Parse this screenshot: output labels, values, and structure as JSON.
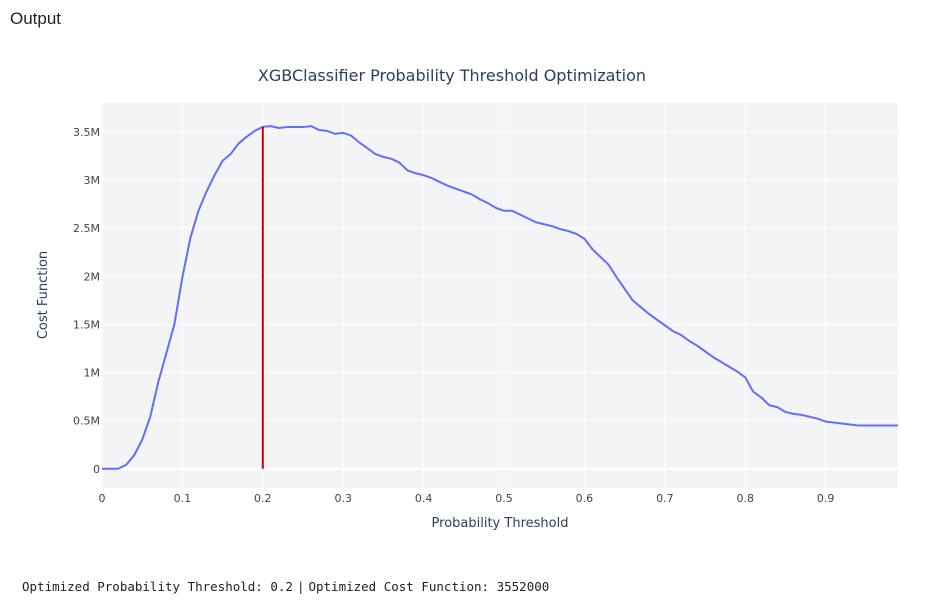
{
  "output_label": "Output",
  "result": {
    "threshold_text": "Optimized Probability Threshold: 0.2",
    "separator": "|",
    "cost_text": "Optimized Cost Function: 3552000"
  },
  "colors": {
    "plot_bg": "#f4f4f7",
    "grid": "#ffffff",
    "line": "#636efa",
    "marker_line": "#cc0000",
    "text": "#2a3f5f"
  },
  "chart_data": {
    "type": "line",
    "title": "XGBClassifier Probability Threshold Optimization",
    "xlabel": "Probability Threshold",
    "ylabel": "Cost Function",
    "xlim": [
      0,
      0.99
    ],
    "ylim": [
      -200000,
      3800000
    ],
    "grid": true,
    "x_ticks": [
      {
        "value": 0,
        "label": "0"
      },
      {
        "value": 0.1,
        "label": "0.1"
      },
      {
        "value": 0.2,
        "label": "0.2"
      },
      {
        "value": 0.3,
        "label": "0.3"
      },
      {
        "value": 0.4,
        "label": "0.4"
      },
      {
        "value": 0.5,
        "label": "0.5"
      },
      {
        "value": 0.6,
        "label": "0.6"
      },
      {
        "value": 0.7,
        "label": "0.7"
      },
      {
        "value": 0.8,
        "label": "0.8"
      },
      {
        "value": 0.9,
        "label": "0.9"
      }
    ],
    "y_ticks": [
      {
        "value": 0,
        "label": "0"
      },
      {
        "value": 500000,
        "label": "0.5M"
      },
      {
        "value": 1000000,
        "label": "1M"
      },
      {
        "value": 1500000,
        "label": "1.5M"
      },
      {
        "value": 2000000,
        "label": "2M"
      },
      {
        "value": 2500000,
        "label": "2.5M"
      },
      {
        "value": 3000000,
        "label": "3M"
      },
      {
        "value": 3500000,
        "label": "3.5M"
      }
    ],
    "series": [
      {
        "x": [
          0,
          0.01,
          0.02,
          0.03,
          0.04,
          0.05,
          0.06,
          0.07,
          0.08,
          0.09,
          0.1,
          0.11,
          0.12,
          0.13,
          0.14,
          0.15,
          0.16,
          0.17,
          0.18,
          0.19,
          0.2,
          0.21,
          0.22,
          0.23,
          0.24,
          0.25,
          0.26,
          0.27,
          0.28,
          0.29,
          0.3,
          0.31,
          0.32,
          0.33,
          0.34,
          0.35,
          0.36,
          0.37,
          0.38,
          0.39,
          0.4,
          0.41,
          0.42,
          0.43,
          0.44,
          0.45,
          0.46,
          0.47,
          0.48,
          0.49,
          0.5,
          0.51,
          0.52,
          0.53,
          0.54,
          0.55,
          0.56,
          0.57,
          0.58,
          0.59,
          0.6,
          0.61,
          0.62,
          0.63,
          0.64,
          0.65,
          0.66,
          0.67,
          0.68,
          0.69,
          0.7,
          0.71,
          0.72,
          0.73,
          0.74,
          0.75,
          0.76,
          0.77,
          0.78,
          0.79,
          0.8,
          0.81,
          0.82,
          0.83,
          0.84,
          0.85,
          0.86,
          0.87,
          0.88,
          0.89,
          0.9,
          0.91,
          0.92,
          0.93,
          0.94,
          0.95,
          0.96,
          0.97,
          0.98,
          0.99
        ],
        "y": [
          0,
          0,
          0,
          40000,
          140000,
          300000,
          540000,
          900000,
          1200000,
          1500000,
          1990000,
          2400000,
          2680000,
          2880000,
          3050000,
          3200000,
          3270000,
          3380000,
          3450000,
          3510000,
          3552000,
          3560000,
          3540000,
          3550000,
          3550000,
          3550000,
          3560000,
          3520000,
          3510000,
          3480000,
          3490000,
          3460000,
          3390000,
          3330000,
          3270000,
          3240000,
          3220000,
          3180000,
          3100000,
          3070000,
          3050000,
          3020000,
          2980000,
          2940000,
          2910000,
          2880000,
          2850000,
          2800000,
          2760000,
          2710000,
          2680000,
          2680000,
          2640000,
          2600000,
          2560000,
          2540000,
          2520000,
          2490000,
          2470000,
          2440000,
          2390000,
          2280000,
          2200000,
          2120000,
          1990000,
          1870000,
          1750000,
          1680000,
          1610000,
          1550000,
          1490000,
          1430000,
          1390000,
          1330000,
          1280000,
          1220000,
          1160000,
          1110000,
          1060000,
          1010000,
          950000,
          800000,
          740000,
          660000,
          640000,
          590000,
          570000,
          560000,
          540000,
          520000,
          490000,
          480000,
          470000,
          460000,
          450000,
          450000,
          450000,
          450000,
          450000,
          450000
        ]
      }
    ],
    "threshold_marker": {
      "x": 0.2,
      "y_from": 0,
      "y_to": 3552000
    }
  }
}
